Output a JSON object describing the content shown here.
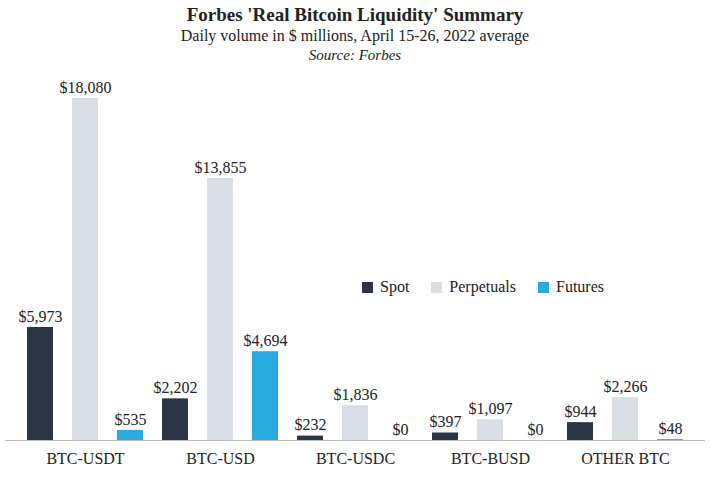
{
  "chart_data": {
    "type": "bar",
    "title": "Forbes 'Real Bitcoin Liquidity' Summary",
    "subtitle": "Daily volume in $ millions, April 15-26, 2022 average",
    "caption": "Source: Forbes",
    "categories": [
      "BTC-USDT",
      "BTC-USD",
      "BTC-USDC",
      "BTC-BUSD",
      "OTHER BTC"
    ],
    "series": [
      {
        "name": "Spot",
        "color": "#2b3544",
        "values": [
          5973,
          2202,
          232,
          397,
          944
        ],
        "value_labels": [
          "$5,973",
          "$2,202",
          "$232",
          "$397",
          "$944"
        ]
      },
      {
        "name": "Perpetuals",
        "color": "#d9dde6",
        "values": [
          18080,
          13855,
          1836,
          1097,
          2266
        ],
        "value_labels": [
          "$18,080",
          "$13,855",
          "$1,836",
          "$1,097",
          "$2,266"
        ]
      },
      {
        "name": "Futures",
        "color": "#29abe2",
        "values": [
          535,
          4694,
          0,
          0,
          48
        ],
        "value_labels": [
          "$535",
          "$4,694",
          "$0",
          "$0",
          "$48"
        ]
      }
    ],
    "ylim": [
      0,
      18080
    ],
    "data_labels": true,
    "tick_labels": "x",
    "legend": "right",
    "grid": false
  }
}
